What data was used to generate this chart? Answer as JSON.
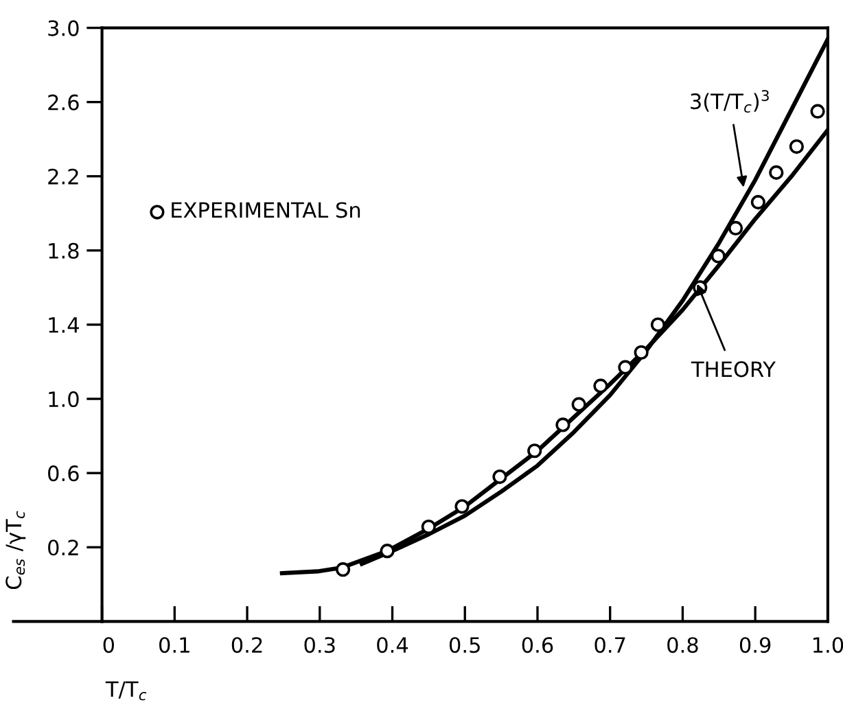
{
  "chart_data": {
    "type": "line",
    "xlabel": "T/T$_{c}$",
    "ylabel": "C$_{es}$ /γT$_{c}$",
    "xlim": [
      0,
      1.0
    ],
    "ylim": [
      -0.2,
      3.0
    ],
    "xticks": [
      0,
      0.1,
      0.2,
      0.3,
      0.4,
      0.5,
      0.6,
      0.7,
      0.8,
      0.9,
      {
        "value": 1,
        "label": "1.0"
      }
    ],
    "yticks": [
      0.2,
      0.6,
      {
        "value": 1,
        "label": "1.0"
      },
      1.4,
      1.8,
      2.2,
      2.6,
      {
        "value": 3,
        "label": "3.0"
      }
    ],
    "grid": false,
    "legend": "left",
    "series": [
      {
        "type": "scatter",
        "name": "EXPERIMENTAL Sn",
        "color": "#000000",
        "marker": "circle",
        "x": [
          0.332,
          0.393,
          0.45,
          0.496,
          0.548,
          0.596,
          0.635,
          0.657,
          0.687,
          0.721,
          0.743,
          0.766,
          0.824,
          0.849,
          0.873,
          0.904,
          0.929,
          0.957,
          0.986
        ],
        "values": [
          0.08,
          0.18,
          0.31,
          0.42,
          0.58,
          0.72,
          0.86,
          0.97,
          1.07,
          1.17,
          1.25,
          1.4,
          1.6,
          1.77,
          1.92,
          2.06,
          2.22,
          2.36,
          2.55
        ]
      },
      {
        "type": "line",
        "color": "#000000",
        "line_style": "solid",
        "x": [
          0.248,
          0.297,
          0.33,
          0.393,
          0.45,
          0.5,
          0.55,
          0.6,
          0.65,
          0.7,
          0.75,
          0.8,
          0.85,
          0.9,
          0.95,
          1.0
        ],
        "values": [
          0.06,
          0.07,
          0.09,
          0.18,
          0.3,
          0.42,
          0.57,
          0.72,
          0.9,
          1.08,
          1.27,
          1.48,
          1.72,
          1.97,
          2.2,
          2.45
        ]
      },
      {
        "type": "line",
        "color": "#000000",
        "line_style": "solid",
        "x": [
          0.358,
          0.4,
          0.45,
          0.5,
          0.55,
          0.6,
          0.65,
          0.7,
          0.75,
          0.8,
          0.85,
          0.9,
          0.95,
          1.0
        ],
        "values": [
          0.11,
          0.18,
          0.27,
          0.37,
          0.5,
          0.64,
          0.82,
          1.02,
          1.26,
          1.53,
          1.84,
          2.18,
          2.56,
          2.94
        ]
      }
    ],
    "annotations": [
      {
        "text": "3(T/T$_{c}$)$^{3}$",
        "x": 0.884,
        "y": 2.14
      },
      {
        "text": "THEORY",
        "x": 0.82,
        "y": 1.62
      }
    ]
  }
}
